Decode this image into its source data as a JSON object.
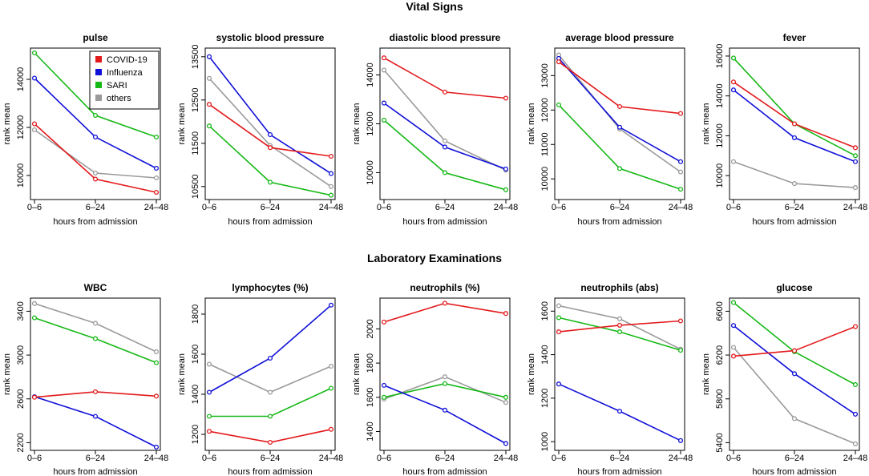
{
  "colors": {
    "COVID-19": "#e31a1c",
    "Influenza": "#1010d8",
    "SARI": "#16b816",
    "others": "#9a9a9a"
  },
  "sections": [
    {
      "title": "Vital Signs"
    },
    {
      "title": "Laboratory Examinations"
    }
  ],
  "chart_data": [
    {
      "type": "line",
      "title": "pulse",
      "xlabel": "hours from admission",
      "ylabel": "rank mean",
      "categories": [
        "0–6",
        "6–24",
        "24–48"
      ],
      "ylim": [
        9000,
        15300
      ],
      "yticks": [
        10000,
        12000,
        14000
      ],
      "ytick_labels": [
        "10000",
        "12000",
        "14000"
      ],
      "legend": {
        "position": "top-right",
        "entries": [
          "COVID-19",
          "Influenza",
          "SARI",
          "others"
        ]
      },
      "series": [
        {
          "name": "COVID-19",
          "values": [
            12150,
            9850,
            9300
          ]
        },
        {
          "name": "Influenza",
          "values": [
            14050,
            11600,
            10300
          ]
        },
        {
          "name": "SARI",
          "values": [
            15100,
            12500,
            11600
          ]
        },
        {
          "name": "others",
          "values": [
            11900,
            10100,
            9900
          ]
        }
      ]
    },
    {
      "type": "line",
      "title": "systolic blood pressure",
      "xlabel": "hours from admission",
      "ylabel": "rank mean",
      "categories": [
        "0–6",
        "6–24",
        "24–48"
      ],
      "ylim": [
        10200,
        13700
      ],
      "yticks": [
        10500,
        11500,
        12500,
        13500
      ],
      "ytick_labels": [
        "10500",
        "11500",
        "12500",
        "13500"
      ],
      "series": [
        {
          "name": "COVID-19",
          "values": [
            12400,
            11400,
            11200
          ]
        },
        {
          "name": "Influenza",
          "values": [
            13500,
            11700,
            10800
          ]
        },
        {
          "name": "SARI",
          "values": [
            11900,
            10600,
            10300
          ]
        },
        {
          "name": "others",
          "values": [
            13000,
            11450,
            10500
          ]
        }
      ]
    },
    {
      "type": "line",
      "title": "diastolic blood pressure",
      "xlabel": "hours from admission",
      "ylabel": "rank mean",
      "categories": [
        "0–6",
        "6–24",
        "24–48"
      ],
      "ylim": [
        8900,
        15100
      ],
      "yticks": [
        10000,
        12000,
        14000
      ],
      "ytick_labels": [
        "10000",
        "12000",
        "14000"
      ],
      "series": [
        {
          "name": "COVID-19",
          "values": [
            14700,
            13300,
            13050
          ]
        },
        {
          "name": "Influenza",
          "values": [
            12850,
            11050,
            10150
          ]
        },
        {
          "name": "SARI",
          "values": [
            12150,
            10000,
            9300
          ]
        },
        {
          "name": "others",
          "values": [
            14200,
            11300,
            10100
          ]
        }
      ]
    },
    {
      "type": "line",
      "title": "average blood pressure",
      "xlabel": "hours from admission",
      "ylabel": "rank mean",
      "categories": [
        "0–6",
        "6–24",
        "24–48"
      ],
      "ylim": [
        9400,
        13800
      ],
      "yticks": [
        10000,
        11000,
        12000,
        13000
      ],
      "ytick_labels": [
        "10000",
        "11000",
        "12000",
        "13000"
      ],
      "series": [
        {
          "name": "COVID-19",
          "values": [
            13400,
            12100,
            11900
          ]
        },
        {
          "name": "Influenza",
          "values": [
            13500,
            11500,
            10500
          ]
        },
        {
          "name": "SARI",
          "values": [
            12150,
            10300,
            9700
          ]
        },
        {
          "name": "others",
          "values": [
            13600,
            11450,
            10200
          ]
        }
      ]
    },
    {
      "type": "line",
      "title": "fever",
      "xlabel": "hours from admission",
      "ylabel": "rank mean",
      "categories": [
        "0–6",
        "6–24",
        "24–48"
      ],
      "ylim": [
        8800,
        16400
      ],
      "yticks": [
        10000,
        12000,
        14000,
        16000
      ],
      "ytick_labels": [
        "10000",
        "12000",
        "14000",
        "16000"
      ],
      "series": [
        {
          "name": "COVID-19",
          "values": [
            14700,
            12600,
            11400
          ]
        },
        {
          "name": "Influenza",
          "values": [
            14300,
            11900,
            10700
          ]
        },
        {
          "name": "SARI",
          "values": [
            15900,
            12600,
            11000
          ]
        },
        {
          "name": "others",
          "values": [
            10700,
            9600,
            9400
          ]
        }
      ]
    },
    {
      "type": "line",
      "title": "WBC",
      "xlabel": "hours from admission",
      "ylabel": "rank mean",
      "categories": [
        "0–6",
        "6–24",
        "24–48"
      ],
      "ylim": [
        2130,
        3520
      ],
      "yticks": [
        2200,
        2600,
        3000,
        3400
      ],
      "ytick_labels": [
        "2200",
        "2600",
        "3000",
        "3400"
      ],
      "series": [
        {
          "name": "COVID-19",
          "values": [
            2615,
            2665,
            2625
          ]
        },
        {
          "name": "Influenza",
          "values": [
            2620,
            2440,
            2160
          ]
        },
        {
          "name": "SARI",
          "values": [
            3340,
            3150,
            2930
          ]
        },
        {
          "name": "others",
          "values": [
            3470,
            3290,
            3030
          ]
        }
      ]
    },
    {
      "type": "line",
      "title": "lymphocytes (%)",
      "xlabel": "hours from admission",
      "ylabel": "rank mean",
      "categories": [
        "0–6",
        "6–24",
        "24–48"
      ],
      "ylim": [
        1120,
        1880
      ],
      "yticks": [
        1200,
        1400,
        1600,
        1800
      ],
      "ytick_labels": [
        "1200",
        "1400",
        "1600",
        "1800"
      ],
      "series": [
        {
          "name": "COVID-19",
          "values": [
            1215,
            1160,
            1225
          ]
        },
        {
          "name": "Influenza",
          "values": [
            1410,
            1580,
            1845
          ]
        },
        {
          "name": "SARI",
          "values": [
            1290,
            1290,
            1430
          ]
        },
        {
          "name": "others",
          "values": [
            1550,
            1410,
            1540
          ]
        }
      ]
    },
    {
      "type": "line",
      "title": "neutrophils (%)",
      "xlabel": "hours from admission",
      "ylabel": "rank mean",
      "categories": [
        "0–6",
        "6–24",
        "24–48"
      ],
      "ylim": [
        1290,
        2180
      ],
      "yticks": [
        1400,
        1600,
        1800,
        2000
      ],
      "ytick_labels": [
        "1400",
        "1600",
        "1800",
        "2000"
      ],
      "series": [
        {
          "name": "COVID-19",
          "values": [
            2040,
            2150,
            2090
          ]
        },
        {
          "name": "Influenza",
          "values": [
            1670,
            1525,
            1330
          ]
        },
        {
          "name": "SARI",
          "values": [
            1600,
            1680,
            1600
          ]
        },
        {
          "name": "others",
          "values": [
            1590,
            1720,
            1570
          ]
        }
      ]
    },
    {
      "type": "line",
      "title": "neutrophils (abs)",
      "xlabel": "hours from admission",
      "ylabel": "rank mean",
      "categories": [
        "0–6",
        "6–24",
        "24–48"
      ],
      "ylim": [
        960,
        1660
      ],
      "yticks": [
        1000,
        1200,
        1400,
        1600
      ],
      "ytick_labels": [
        "1000",
        "1200",
        "1400",
        "1600"
      ],
      "series": [
        {
          "name": "COVID-19",
          "values": [
            1505,
            1535,
            1555
          ]
        },
        {
          "name": "Influenza",
          "values": [
            1265,
            1140,
            1005
          ]
        },
        {
          "name": "SARI",
          "values": [
            1570,
            1505,
            1420
          ]
        },
        {
          "name": "others",
          "values": [
            1625,
            1565,
            1425
          ]
        }
      ]
    },
    {
      "type": "line",
      "title": "glucose",
      "xlabel": "hours from admission",
      "ylabel": "rank mean",
      "categories": [
        "0–6",
        "6–24",
        "24–48"
      ],
      "ylim": [
        5330,
        6720
      ],
      "yticks": [
        5400,
        5800,
        6200,
        6600
      ],
      "ytick_labels": [
        "5400",
        "5800",
        "6200",
        "6600"
      ],
      "series": [
        {
          "name": "COVID-19",
          "values": [
            6190,
            6240,
            6460
          ]
        },
        {
          "name": "Influenza",
          "values": [
            6470,
            6030,
            5660
          ]
        },
        {
          "name": "SARI",
          "values": [
            6680,
            6230,
            5930
          ]
        },
        {
          "name": "others",
          "values": [
            6270,
            5620,
            5390
          ]
        }
      ]
    }
  ]
}
